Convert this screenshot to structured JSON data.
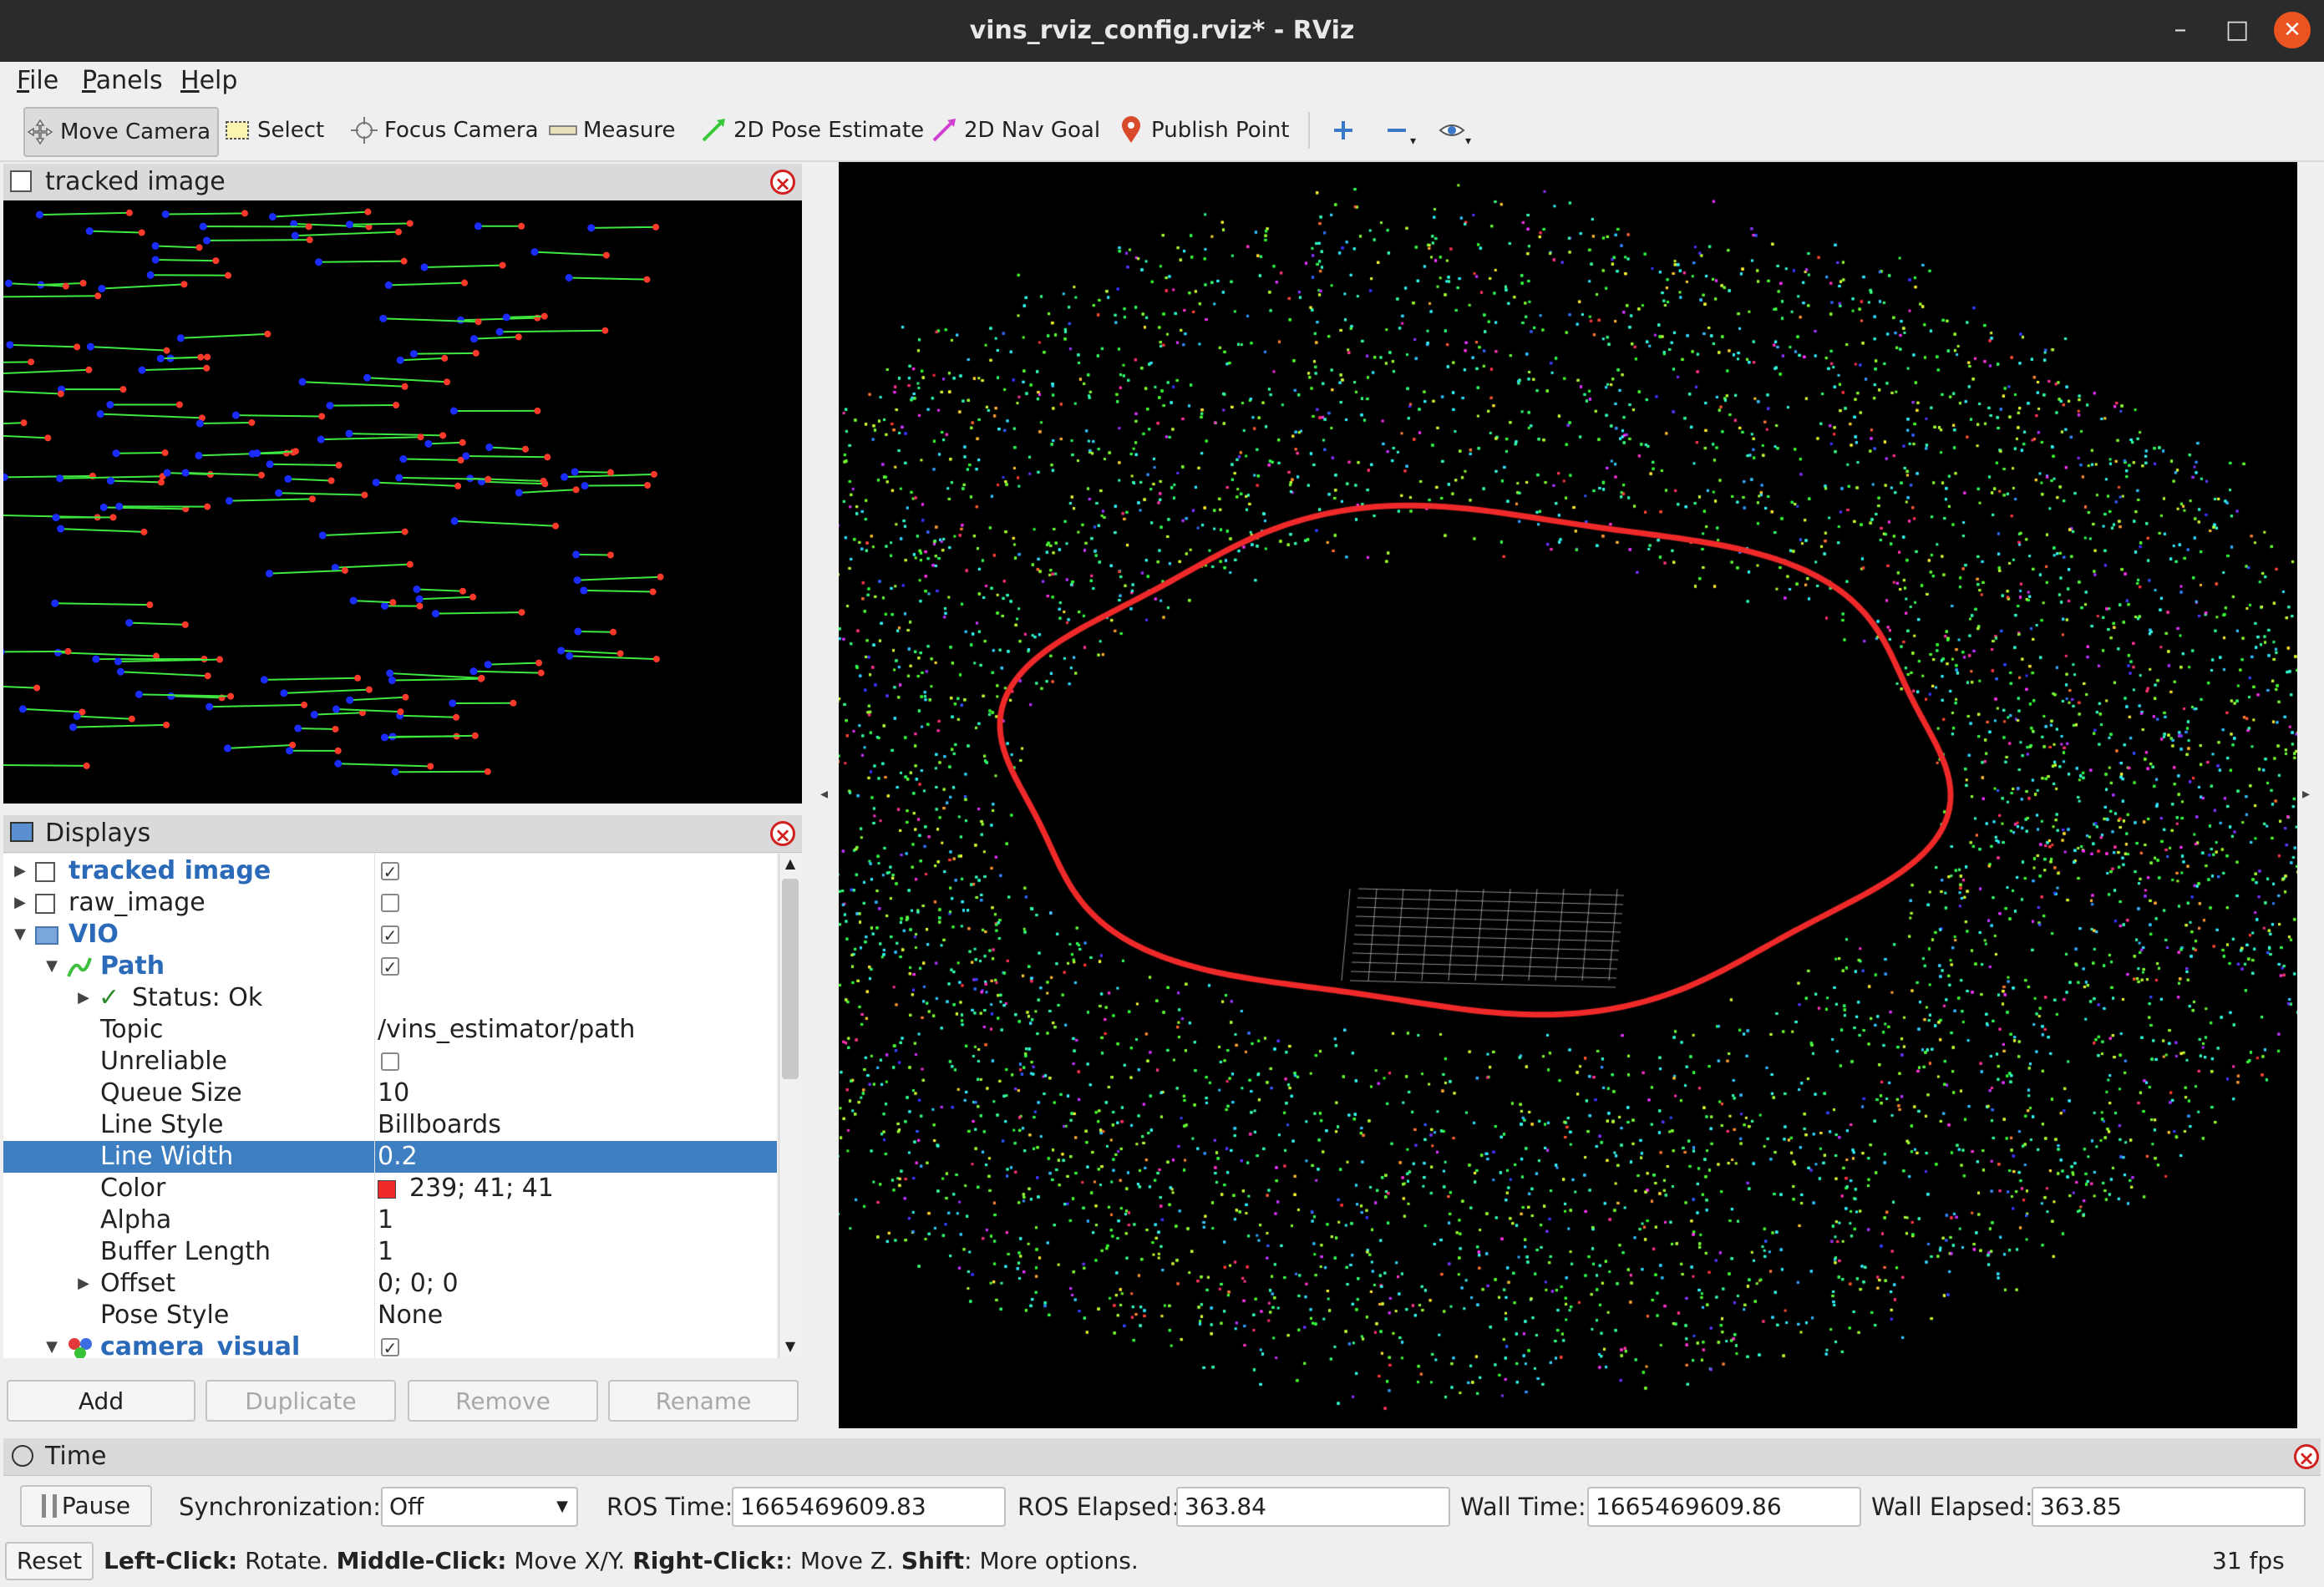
{
  "window": {
    "title": "vins_rviz_config.rviz* - RViz"
  },
  "menu": {
    "items": [
      "File",
      "Panels",
      "Help"
    ]
  },
  "toolbar": {
    "tools": [
      {
        "label": "Move Camera",
        "icon": "move-camera-icon",
        "active": true
      },
      {
        "label": "Select",
        "icon": "select-icon"
      },
      {
        "label": "Focus Camera",
        "icon": "focus-camera-icon"
      },
      {
        "label": "Measure",
        "icon": "measure-icon"
      },
      {
        "label": "2D Pose Estimate",
        "icon": "pose-estimate-icon"
      },
      {
        "label": "2D Nav Goal",
        "icon": "nav-goal-icon"
      },
      {
        "label": "Publish Point",
        "icon": "publish-point-icon"
      }
    ]
  },
  "image_panel": {
    "title": "tracked image"
  },
  "displays": {
    "title": "Displays",
    "rows": [
      {
        "name": "tracked image",
        "value": "",
        "check": true,
        "level": 0,
        "arrow": "right",
        "icon": "image",
        "style": "blue"
      },
      {
        "name": "raw_image",
        "value": "",
        "check": false,
        "level": 0,
        "arrow": "right",
        "icon": "image"
      },
      {
        "name": "VIO",
        "value": "",
        "check": true,
        "level": 0,
        "arrow": "down",
        "icon": "folder",
        "style": "blue"
      },
      {
        "name": "Path",
        "value": "",
        "check": true,
        "level": 1,
        "arrow": "down",
        "icon": "path",
        "style": "blue"
      },
      {
        "name": "Status: Ok",
        "value": "",
        "level": 2,
        "arrow": "right",
        "icon": "check"
      },
      {
        "name": "Topic",
        "value": "/vins_estimator/path",
        "level": 2
      },
      {
        "name": "Unreliable",
        "value": "",
        "check": false,
        "level": 2
      },
      {
        "name": "Queue Size",
        "value": "10",
        "level": 2
      },
      {
        "name": "Line Style",
        "value": "Billboards",
        "level": 2
      },
      {
        "name": "Line Width",
        "value": "0.2",
        "level": 2,
        "selected": true
      },
      {
        "name": "Color",
        "value": "239; 41; 41",
        "level": 2,
        "swatch": "#ef2929"
      },
      {
        "name": "Alpha",
        "value": "1",
        "level": 2
      },
      {
        "name": "Buffer Length",
        "value": "1",
        "level": 2
      },
      {
        "name": "Offset",
        "value": "0; 0; 0",
        "level": 2,
        "arrow": "right"
      },
      {
        "name": "Pose Style",
        "value": "None",
        "level": 2
      },
      {
        "name": "camera_visual",
        "value": "",
        "check": true,
        "level": 1,
        "arrow": "down",
        "icon": "marker",
        "style": "blue"
      }
    ],
    "buttons": {
      "add": "Add",
      "duplicate": "Duplicate",
      "remove": "Remove",
      "rename": "Rename"
    }
  },
  "time_panel": {
    "title": "Time",
    "pause": "Pause",
    "sync_label": "Synchronization:",
    "sync_value": "Off",
    "ros_time_label": "ROS Time:",
    "ros_time": "1665469609.83",
    "ros_elapsed_label": "ROS Elapsed:",
    "ros_elapsed": "363.84",
    "wall_time_label": "Wall Time:",
    "wall_time": "1665469609.86",
    "wall_elapsed_label": "Wall Elapsed:",
    "wall_elapsed": "363.85"
  },
  "statusbar": {
    "reset": "Reset",
    "hint_parts": [
      {
        "b": true,
        "t": "Left-Click:"
      },
      {
        "b": false,
        "t": " Rotate. "
      },
      {
        "b": true,
        "t": "Middle-Click:"
      },
      {
        "b": false,
        "t": " Move X/Y. "
      },
      {
        "b": true,
        "t": "Right-Click:"
      },
      {
        "b": false,
        "t": ": Move Z. "
      },
      {
        "b": true,
        "t": "Shift"
      },
      {
        "b": false,
        "t": ": More options."
      }
    ],
    "fps": "31 fps"
  },
  "colors": {
    "path": "#ef2929",
    "selection": "#3d7fc1",
    "close": "#e95420"
  }
}
